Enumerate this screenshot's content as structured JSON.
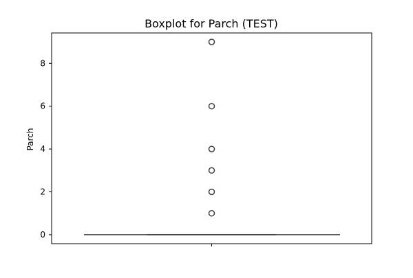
{
  "chart_data": {
    "type": "box",
    "title": "Boxplot for Parch (TEST)",
    "xlabel": "",
    "ylabel": "Parch",
    "ylim": [
      -0.42,
      9.42
    ],
    "yticks": [
      0,
      2,
      4,
      6,
      8
    ],
    "ytick_labels": [
      "0",
      "2",
      "4",
      "6",
      "8"
    ],
    "grid": false,
    "series": [
      {
        "min": 0,
        "q1": 0,
        "median": 0,
        "q3": 0,
        "max": 0,
        "outliers": [
          1,
          2,
          3,
          4,
          6,
          9
        ]
      }
    ],
    "colors": {
      "box_line": "#3f3f3f",
      "outlier_edge": "#3f3f3f",
      "axes": "#000000"
    }
  }
}
